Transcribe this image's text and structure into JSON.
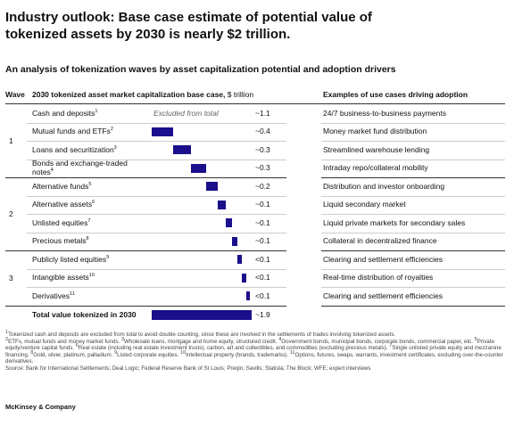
{
  "chart_data": {
    "type": "waterfall",
    "title": "Industry outlook: Base case estimate of potential value of tokenized assets by 2030 is nearly $2 trillion.",
    "subtitle": "An analysis of tokenization waves by asset capitalization potential and adoption drivers",
    "headers": {
      "wave": "Wave",
      "chart": "2030 tokenized asset market capitalization base case,",
      "unit": "$ trillion",
      "use_cases": "Examples of use cases driving adoption"
    },
    "categories": [
      "Cash and deposits",
      "Mutual funds and ETFs",
      "Loans and securitization",
      "Bonds and exchange-traded notes",
      "Alternative funds",
      "Alternative assets",
      "Unlisted equities",
      "Precious metals",
      "Publicly listed equities",
      "Intangible assets",
      "Derivatives"
    ],
    "footnote_marks": [
      "1",
      "2",
      "3",
      "4",
      "5",
      "6",
      "7",
      "8",
      "9",
      "10",
      "11"
    ],
    "waves": [
      "1",
      "1",
      "1",
      "1",
      "2",
      "2",
      "2",
      "2",
      "3",
      "3",
      "3"
    ],
    "values": [
      1.1,
      0.4,
      0.34,
      0.3,
      0.22,
      0.14,
      0.13,
      0.1,
      0.08,
      0.08,
      0.07
    ],
    "value_labels": [
      "~1.1",
      "~0.4",
      "~0.3",
      "~0.3",
      "~0.2",
      "~0.1",
      "~0.1",
      "~0.1",
      "<0.1",
      "<0.1",
      "<0.1"
    ],
    "included": [
      false,
      true,
      true,
      true,
      true,
      true,
      true,
      true,
      true,
      true,
      true
    ],
    "excluded_note": "Excluded from total",
    "use_cases": [
      "24/7 business-to-business payments",
      "Money market fund distribution",
      "Streamlined warehouse lending",
      "Intraday repo/collateral mobility",
      "Distribution and investor onboarding",
      "Liquid secondary market",
      "Liquid private markets for secondary sales",
      "Collateral in decentralized finance",
      "Clearing and settlement efficiencies",
      "Real-time distribution of royalties",
      "Clearing and settlement efficiencies"
    ],
    "total": {
      "label": "Total value tokenized in 2030",
      "value": 1.9,
      "value_label": "~1.9"
    },
    "color": "#1b0f8c"
  },
  "footnotes": [
    {
      "mark": "1",
      "text": "Tokenized cash and deposits are excluded from total to avoid double counting, since these are involved in the settlements of trades involving tokenized assets."
    },
    {
      "mark": "2",
      "text": "ETFs, mutual funds and money market funds."
    },
    {
      "mark": "3",
      "text": "Wholesale loans, mortgage and home equity, structured credit."
    },
    {
      "mark": "4",
      "text": "Government bonds, municipal bonds, corporate bonds, commercial paper, etc."
    },
    {
      "mark": "5",
      "text": "Private equity/venture capital funds."
    },
    {
      "mark": "6",
      "text": "Real estate (including real estate investment trusts), carbon, art and collectibles, and commodities (excluding precious metals)."
    },
    {
      "mark": "7",
      "text": "Single unlisted private equity and mezzanine financing."
    },
    {
      "mark": "8",
      "text": "Gold, silver, platinum, palladium."
    },
    {
      "mark": "9",
      "text": "Listed corporate equities."
    },
    {
      "mark": "10",
      "text": "Intellectual property (brands, trademarks)."
    },
    {
      "mark": "11",
      "text": "Options, futures, swaps, warrants, investment certificates, excluding over-the-counter derivatives."
    }
  ],
  "source": "Source: Bank for International Settlements; Deal Logic; Federal Reserve Bank of St Louis; Preqin; Savills; Statista; The Block; WFE; expert interviews",
  "brand": "McKinsey & Company"
}
